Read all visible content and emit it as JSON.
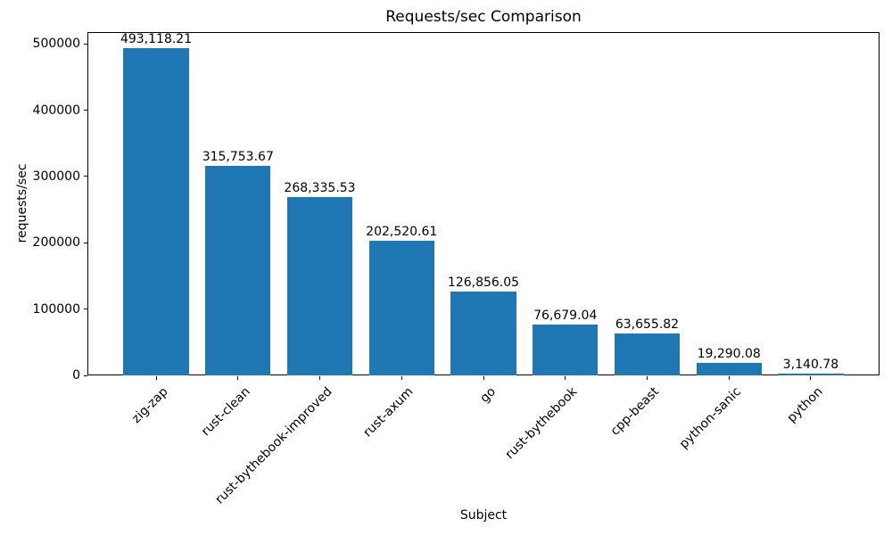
{
  "chart_data": {
    "type": "bar",
    "title": "Requests/sec Comparison",
    "xlabel": "Subject",
    "ylabel": "requests/sec",
    "categories": [
      "zig-zap",
      "rust-clean",
      "rust-bythebook-improved",
      "rust-axum",
      "go",
      "rust-bythebook",
      "cpp-beast",
      "python-sanic",
      "python"
    ],
    "values": [
      493118.21,
      315753.67,
      268335.53,
      202520.61,
      126856.05,
      76679.04,
      63655.82,
      19290.08,
      3140.78
    ],
    "bar_labels": [
      "493,118.21",
      "315,753.67",
      "268,335.53",
      "202,520.61",
      "126,856.05",
      "76,679.04",
      "63,655.82",
      "19,290.08",
      "3,140.78"
    ],
    "yticks": [
      0,
      100000,
      200000,
      300000,
      400000,
      500000
    ],
    "ytick_labels": [
      "0",
      "100000",
      "200000",
      "300000",
      "400000",
      "500000"
    ],
    "ylim": [
      0,
      517774
    ],
    "xtick_rotation_deg": 45,
    "bar_color": "#1f77b4",
    "axis_color": "#000000",
    "text_color": "#000000",
    "background_color": "#ffffff",
    "grid": false,
    "legend_position": "none"
  }
}
